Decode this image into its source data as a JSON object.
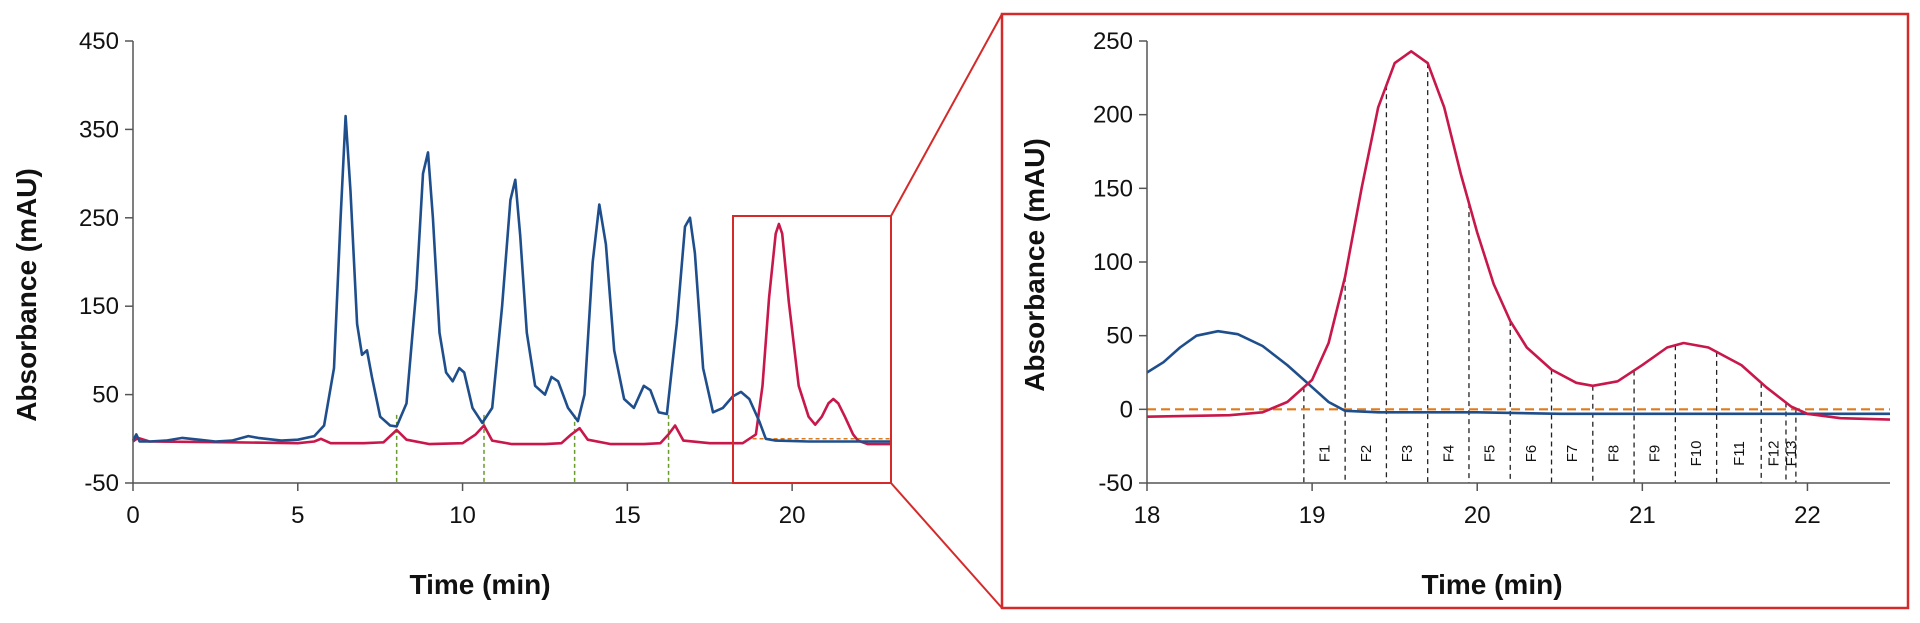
{
  "chart_data": [
    {
      "type": "line",
      "xlabel": "Time (min)",
      "ylabel": "Absorbance (mAU)",
      "xlim": [
        0,
        23
      ],
      "ylim": [
        -50,
        450
      ],
      "xticks": [
        0,
        5,
        10,
        15,
        20
      ],
      "yticks": [
        -50,
        50,
        150,
        250,
        350,
        450
      ],
      "series": [
        {
          "color": "#1f4e8c",
          "points": [
            [
              0,
              -2
            ],
            [
              0.1,
              5
            ],
            [
              0.2,
              -3
            ],
            [
              0.5,
              -3
            ],
            [
              1.0,
              -2
            ],
            [
              1.5,
              1
            ],
            [
              2.0,
              -1
            ],
            [
              2.5,
              -3
            ],
            [
              3.0,
              -2
            ],
            [
              3.5,
              3
            ],
            [
              3.8,
              1
            ],
            [
              4.5,
              -2
            ],
            [
              5.0,
              -1
            ],
            [
              5.5,
              3
            ],
            [
              5.8,
              15
            ],
            [
              6.1,
              80
            ],
            [
              6.3,
              250
            ],
            [
              6.45,
              365
            ],
            [
              6.6,
              280
            ],
            [
              6.8,
              130
            ],
            [
              6.95,
              95
            ],
            [
              7.1,
              100
            ],
            [
              7.25,
              70
            ],
            [
              7.5,
              25
            ],
            [
              7.8,
              15
            ],
            [
              8.0,
              14
            ],
            [
              8.3,
              40
            ],
            [
              8.6,
              170
            ],
            [
              8.8,
              300
            ],
            [
              8.95,
              324
            ],
            [
              9.1,
              250
            ],
            [
              9.3,
              120
            ],
            [
              9.5,
              75
            ],
            [
              9.7,
              65
            ],
            [
              9.9,
              80
            ],
            [
              10.05,
              75
            ],
            [
              10.3,
              35
            ],
            [
              10.6,
              18
            ],
            [
              10.9,
              35
            ],
            [
              11.2,
              150
            ],
            [
              11.45,
              270
            ],
            [
              11.6,
              293
            ],
            [
              11.75,
              230
            ],
            [
              11.95,
              120
            ],
            [
              12.2,
              60
            ],
            [
              12.5,
              50
            ],
            [
              12.7,
              70
            ],
            [
              12.9,
              65
            ],
            [
              13.2,
              35
            ],
            [
              13.5,
              20
            ],
            [
              13.7,
              50
            ],
            [
              13.95,
              200
            ],
            [
              14.15,
              265
            ],
            [
              14.35,
              220
            ],
            [
              14.6,
              100
            ],
            [
              14.9,
              45
            ],
            [
              15.2,
              35
            ],
            [
              15.5,
              60
            ],
            [
              15.7,
              55
            ],
            [
              15.95,
              30
            ],
            [
              16.2,
              28
            ],
            [
              16.5,
              130
            ],
            [
              16.75,
              240
            ],
            [
              16.9,
              250
            ],
            [
              17.05,
              210
            ],
            [
              17.3,
              80
            ],
            [
              17.6,
              30
            ],
            [
              17.9,
              35
            ],
            [
              18.2,
              48
            ],
            [
              18.45,
              53
            ],
            [
              18.7,
              45
            ],
            [
              19.0,
              20
            ],
            [
              19.2,
              0
            ],
            [
              19.5,
              -2
            ],
            [
              20.5,
              -3
            ],
            [
              23.0,
              -3
            ]
          ]
        },
        {
          "color": "#c8174a",
          "points": [
            [
              0,
              -3
            ],
            [
              0.15,
              1
            ],
            [
              0.5,
              -3
            ],
            [
              3.0,
              -4
            ],
            [
              5.0,
              -5
            ],
            [
              5.5,
              -3
            ],
            [
              5.7,
              0
            ],
            [
              6.0,
              -5
            ],
            [
              7.0,
              -5
            ],
            [
              7.6,
              -4
            ],
            [
              8.0,
              10
            ],
            [
              8.3,
              -1
            ],
            [
              9.0,
              -6
            ],
            [
              10.0,
              -5
            ],
            [
              10.4,
              5
            ],
            [
              10.65,
              15
            ],
            [
              10.9,
              -2
            ],
            [
              11.5,
              -6
            ],
            [
              12.5,
              -6
            ],
            [
              13.0,
              -5
            ],
            [
              13.3,
              5
            ],
            [
              13.55,
              12
            ],
            [
              13.8,
              -1
            ],
            [
              14.5,
              -6
            ],
            [
              15.5,
              -6
            ],
            [
              16.0,
              -5
            ],
            [
              16.25,
              5
            ],
            [
              16.45,
              15
            ],
            [
              16.7,
              -2
            ],
            [
              17.5,
              -5
            ],
            [
              18.0,
              -5
            ],
            [
              18.5,
              -5
            ],
            [
              18.9,
              5
            ],
            [
              19.1,
              60
            ],
            [
              19.3,
              160
            ],
            [
              19.5,
              232
            ],
            [
              19.6,
              243
            ],
            [
              19.7,
              232
            ],
            [
              19.9,
              155
            ],
            [
              20.2,
              60
            ],
            [
              20.5,
              25
            ],
            [
              20.7,
              16
            ],
            [
              20.9,
              25
            ],
            [
              21.1,
              40
            ],
            [
              21.25,
              45
            ],
            [
              21.4,
              40
            ],
            [
              21.6,
              25
            ],
            [
              21.85,
              5
            ],
            [
              22.0,
              -2
            ],
            [
              22.3,
              -6
            ],
            [
              23.0,
              -6
            ]
          ]
        }
      ],
      "fraction_markers_x": [
        8.0,
        10.65,
        13.4,
        16.25
      ],
      "baseline": {
        "x_start": 18.8,
        "x_end": 23,
        "y": 0
      },
      "grid": false
    },
    {
      "type": "line",
      "xlabel": "Time (min)",
      "ylabel": "Absorbance (mAU)",
      "xlim": [
        18,
        22.5
      ],
      "ylim": [
        -50,
        250
      ],
      "xticks": [
        18,
        19,
        20,
        21,
        22
      ],
      "yticks": [
        -50,
        0,
        50,
        100,
        150,
        200,
        250
      ],
      "series": [
        {
          "color": "#1f4e8c",
          "points": [
            [
              18.0,
              25
            ],
            [
              18.1,
              32
            ],
            [
              18.2,
              42
            ],
            [
              18.3,
              50
            ],
            [
              18.43,
              53
            ],
            [
              18.55,
              51
            ],
            [
              18.7,
              43
            ],
            [
              18.85,
              30
            ],
            [
              19.0,
              15
            ],
            [
              19.1,
              5
            ],
            [
              19.2,
              -1
            ],
            [
              19.4,
              -2
            ],
            [
              20.0,
              -2
            ],
            [
              20.5,
              -3
            ],
            [
              21.0,
              -3
            ],
            [
              21.5,
              -3
            ],
            [
              22.0,
              -3
            ],
            [
              22.5,
              -3
            ]
          ]
        },
        {
          "color": "#c8174a",
          "points": [
            [
              18.0,
              -5
            ],
            [
              18.5,
              -4
            ],
            [
              18.7,
              -2
            ],
            [
              18.85,
              5
            ],
            [
              19.0,
              20
            ],
            [
              19.1,
              45
            ],
            [
              19.2,
              90
            ],
            [
              19.3,
              150
            ],
            [
              19.4,
              205
            ],
            [
              19.5,
              235
            ],
            [
              19.6,
              243
            ],
            [
              19.7,
              235
            ],
            [
              19.8,
              205
            ],
            [
              19.9,
              160
            ],
            [
              20.0,
              120
            ],
            [
              20.1,
              85
            ],
            [
              20.2,
              60
            ],
            [
              20.3,
              42
            ],
            [
              20.45,
              27
            ],
            [
              20.6,
              18
            ],
            [
              20.7,
              16
            ],
            [
              20.85,
              19
            ],
            [
              21.0,
              30
            ],
            [
              21.15,
              42
            ],
            [
              21.25,
              45
            ],
            [
              21.4,
              42
            ],
            [
              21.6,
              30
            ],
            [
              21.75,
              15
            ],
            [
              21.9,
              2
            ],
            [
              22.0,
              -3
            ],
            [
              22.2,
              -6
            ],
            [
              22.5,
              -7
            ]
          ]
        }
      ],
      "baseline": {
        "x_start": 18,
        "x_end": 22.5,
        "y": 0
      },
      "fractions": {
        "boundaries_x": [
          18.95,
          19.2,
          19.45,
          19.7,
          19.95,
          20.2,
          20.45,
          20.7,
          20.95,
          21.2,
          21.45,
          21.72,
          21.87,
          21.93
        ],
        "labels": [
          "F1",
          "F2",
          "F3",
          "F4",
          "F5",
          "F6",
          "F7",
          "F8",
          "F9",
          "F10",
          "F11",
          "F12",
          "F13"
        ]
      },
      "grid": false
    }
  ],
  "colors": {
    "blue_trace": "#1f4e8c",
    "red_trace": "#c8174a",
    "baseline": "#e07b1a",
    "left_markers": "#6a9a2a",
    "zoom_frame": "#d42a2a"
  }
}
